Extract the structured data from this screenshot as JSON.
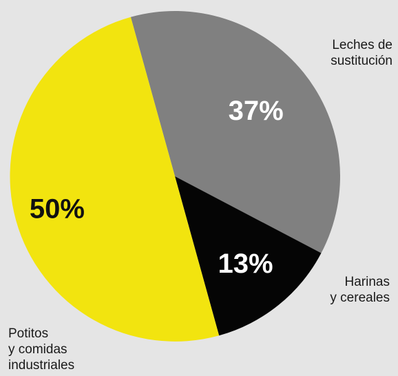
{
  "chart_data": {
    "type": "pie",
    "title": "",
    "start_angle_deg": -15.5,
    "direction": "clockwise",
    "slices": [
      {
        "value": 37,
        "value_label": "37%",
        "label_lines": [
          "Leches de",
          "sustitución"
        ],
        "color": "#808080",
        "value_label_color": "#ffffff"
      },
      {
        "value": 13,
        "value_label": "13%",
        "label_lines": [
          "Harinas",
          "y cereales"
        ],
        "color": "#050505",
        "value_label_color": "#ffffff"
      },
      {
        "value": 50,
        "value_label": "50%",
        "label_lines": [
          "Potitos",
          "y comidas",
          "industriales"
        ],
        "color": "#f2e40f",
        "value_label_color": "#111111"
      }
    ],
    "legend": "none"
  }
}
